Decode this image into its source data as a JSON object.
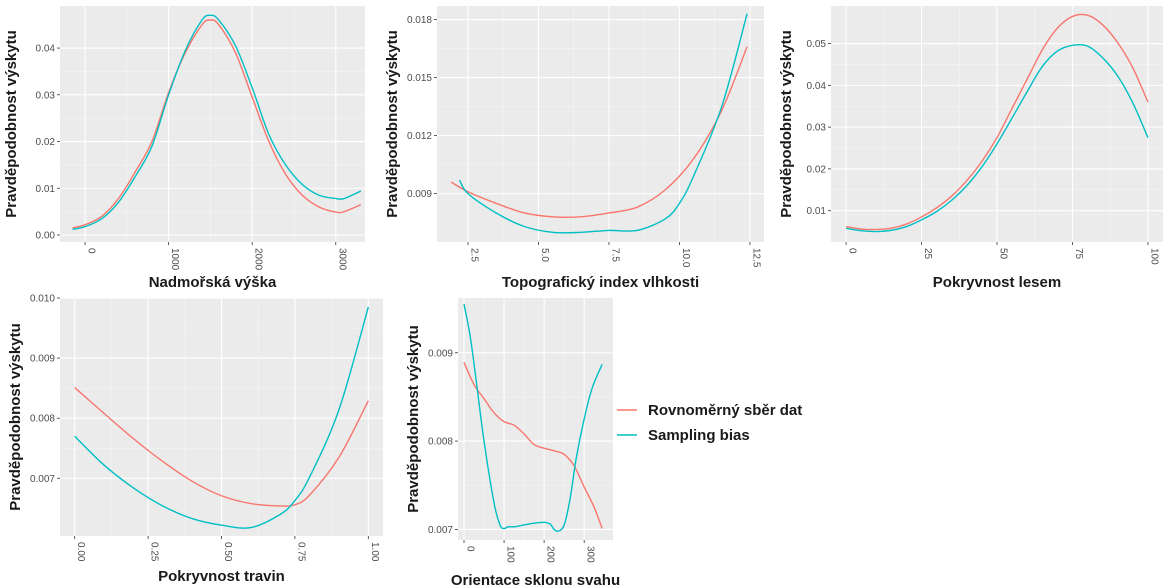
{
  "colors": {
    "uniform": "#F8766D",
    "bias": "#00BFC4",
    "panel_bg": "#EBEBEB",
    "grid_major": "#FFFFFF"
  },
  "legend": {
    "position": "right",
    "entries": [
      {
        "label": "Rovnoměrný sběr dat",
        "color": "#F8766D"
      },
      {
        "label": "Sampling bias",
        "color": "#00BFC4"
      }
    ]
  },
  "chart_data": [
    {
      "type": "line",
      "xlabel": "Nadmořská výška",
      "ylabel": "Pravděpodobnost výskytu",
      "xlim": [
        -300,
        3350
      ],
      "ylim": [
        -0.0015,
        0.049
      ],
      "xticks": [
        {
          "v": 0,
          "label": "0"
        },
        {
          "v": 1000,
          "label": "1000"
        },
        {
          "v": 2000,
          "label": "2000"
        },
        {
          "v": 3000,
          "label": "3000"
        }
      ],
      "yticks": [
        {
          "v": 0,
          "label": "0.00"
        },
        {
          "v": 0.01,
          "label": "0.01"
        },
        {
          "v": 0.02,
          "label": "0.02"
        },
        {
          "v": 0.03,
          "label": "0.03"
        },
        {
          "v": 0.04,
          "label": "0.04"
        }
      ],
      "grid": true,
      "series": [
        {
          "name": "Rovnoměrný sběr dat",
          "color": "#F8766D",
          "x": [
            -150,
            0,
            200,
            400,
            600,
            800,
            1000,
            1200,
            1400,
            1500,
            1600,
            1800,
            2000,
            2200,
            2400,
            2600,
            2800,
            3000,
            3100,
            3300
          ],
          "y": [
            0.0015,
            0.0022,
            0.004,
            0.0078,
            0.0135,
            0.02,
            0.0305,
            0.039,
            0.045,
            0.046,
            0.045,
            0.039,
            0.0295,
            0.02,
            0.013,
            0.0085,
            0.006,
            0.0049,
            0.005,
            0.0065
          ]
        },
        {
          "name": "Sampling bias",
          "color": "#00BFC4",
          "x": [
            -150,
            0,
            200,
            400,
            600,
            800,
            1000,
            1200,
            1400,
            1500,
            1600,
            1800,
            2000,
            2200,
            2400,
            2600,
            2800,
            3000,
            3100,
            3300
          ],
          "y": [
            0.0012,
            0.0018,
            0.0035,
            0.007,
            0.0125,
            0.019,
            0.03,
            0.0395,
            0.046,
            0.047,
            0.046,
            0.0405,
            0.0315,
            0.0215,
            0.015,
            0.0108,
            0.0085,
            0.0078,
            0.0078,
            0.0094
          ]
        }
      ]
    },
    {
      "type": "line",
      "xlabel": "Topografický index vlhkosti",
      "ylabel": "Pravděpodobnost výskytu",
      "xlim": [
        1.4,
        13.0
      ],
      "ylim": [
        0.0065,
        0.0187
      ],
      "xticks": [
        {
          "v": 2.5,
          "label": "2.5"
        },
        {
          "v": 5.0,
          "label": "5.0"
        },
        {
          "v": 7.5,
          "label": "7.5"
        },
        {
          "v": 10.0,
          "label": "10.0"
        },
        {
          "v": 12.5,
          "label": "12.5"
        }
      ],
      "yticks": [
        {
          "v": 0.009,
          "label": "0.009"
        },
        {
          "v": 0.012,
          "label": "0.012"
        },
        {
          "v": 0.015,
          "label": "0.015"
        },
        {
          "v": 0.018,
          "label": "0.018"
        }
      ],
      "grid": true,
      "series": [
        {
          "name": "Rovnoměrný sběr dat",
          "color": "#F8766D",
          "x": [
            1.9,
            2.5,
            3.5,
            4.5,
            5.5,
            6.5,
            7.5,
            8.5,
            9.5,
            10.5,
            11.5,
            12.4
          ],
          "y": [
            0.0096,
            0.0091,
            0.0085,
            0.008,
            0.0078,
            0.0078,
            0.008,
            0.0083,
            0.0092,
            0.0108,
            0.0133,
            0.0166
          ]
        },
        {
          "name": "Sampling bias",
          "color": "#00BFC4",
          "x": [
            2.2,
            2.5,
            3.5,
            4.5,
            5.5,
            6.5,
            7.5,
            8.5,
            9.5,
            10.0,
            10.5,
            11.5,
            12.4
          ],
          "y": [
            0.0097,
            0.009,
            0.008,
            0.0073,
            0.007,
            0.007,
            0.0071,
            0.0071,
            0.0077,
            0.0085,
            0.0099,
            0.0135,
            0.0183
          ]
        }
      ]
    },
    {
      "type": "line",
      "xlabel": "Pokryvnost lesem",
      "ylabel": "Pravděpodobnost výskytu",
      "xlim": [
        -5,
        105
      ],
      "ylim": [
        0.0025,
        0.059
      ],
      "xticks": [
        {
          "v": 0,
          "label": "0"
        },
        {
          "v": 25,
          "label": "25"
        },
        {
          "v": 50,
          "label": "50"
        },
        {
          "v": 75,
          "label": "75"
        },
        {
          "v": 100,
          "label": "100"
        }
      ],
      "yticks": [
        {
          "v": 0.01,
          "label": "0.01"
        },
        {
          "v": 0.02,
          "label": "0.02"
        },
        {
          "v": 0.03,
          "label": "0.03"
        },
        {
          "v": 0.04,
          "label": "0.04"
        },
        {
          "v": 0.05,
          "label": "0.05"
        }
      ],
      "grid": true,
      "series": [
        {
          "name": "Rovnoměrný sběr dat",
          "color": "#F8766D",
          "x": [
            0,
            5,
            10,
            15,
            20,
            25,
            30,
            35,
            40,
            45,
            50,
            55,
            60,
            65,
            70,
            75,
            80,
            85,
            90,
            95,
            100
          ],
          "y": [
            0.0062,
            0.0056,
            0.0055,
            0.0058,
            0.0068,
            0.0085,
            0.0107,
            0.0135,
            0.0172,
            0.0218,
            0.0275,
            0.0345,
            0.0415,
            0.0485,
            0.0537,
            0.0565,
            0.0568,
            0.0545,
            0.0502,
            0.0442,
            0.036
          ]
        },
        {
          "name": "Sampling bias",
          "color": "#00BFC4",
          "x": [
            0,
            5,
            10,
            15,
            20,
            25,
            30,
            35,
            40,
            45,
            50,
            55,
            60,
            65,
            70,
            75,
            80,
            85,
            90,
            95,
            100
          ],
          "y": [
            0.0058,
            0.0052,
            0.005,
            0.0053,
            0.0062,
            0.0078,
            0.0098,
            0.0125,
            0.016,
            0.0205,
            0.026,
            0.0322,
            0.0385,
            0.0445,
            0.0482,
            0.0496,
            0.0494,
            0.0466,
            0.0422,
            0.0358,
            0.0275
          ]
        }
      ]
    },
    {
      "type": "line",
      "xlabel": "Pokryvnost travin",
      "ylabel": "Pravděpodobnost výskytu",
      "xlim": [
        -0.05,
        1.05
      ],
      "ylim": [
        0.00604,
        0.01
      ],
      "xticks": [
        {
          "v": 0,
          "label": "0.00"
        },
        {
          "v": 0.25,
          "label": "0.25"
        },
        {
          "v": 0.5,
          "label": "0.50"
        },
        {
          "v": 0.75,
          "label": "0.75"
        },
        {
          "v": 1.0,
          "label": "1.00"
        }
      ],
      "yticks": [
        {
          "v": 0.007,
          "label": "0.007"
        },
        {
          "v": 0.008,
          "label": "0.008"
        },
        {
          "v": 0.009,
          "label": "0.009"
        },
        {
          "v": 0.01,
          "label": "0.010"
        }
      ],
      "grid": true,
      "series": [
        {
          "name": "Rovnoměrný sběr dat",
          "color": "#F8766D",
          "x": [
            0,
            0.1,
            0.2,
            0.3,
            0.4,
            0.5,
            0.6,
            0.7,
            0.75,
            0.8,
            0.9,
            1.0
          ],
          "y": [
            0.00851,
            0.00808,
            0.00766,
            0.00728,
            0.00695,
            0.00671,
            0.00658,
            0.00654,
            0.00656,
            0.00672,
            0.00735,
            0.00829
          ]
        },
        {
          "name": "Sampling bias",
          "color": "#00BFC4",
          "x": [
            0,
            0.1,
            0.2,
            0.3,
            0.4,
            0.5,
            0.6,
            0.7,
            0.75,
            0.8,
            0.9,
            1.0
          ],
          "y": [
            0.0077,
            0.00722,
            0.00684,
            0.00654,
            0.00633,
            0.00622,
            0.00618,
            0.0064,
            0.00663,
            0.00702,
            0.00814,
            0.00985
          ]
        }
      ]
    },
    {
      "type": "line",
      "xlabel": "Orientace sklonu svahu",
      "ylabel": "Pravděpodobnost výskytu",
      "xlim": [
        -15,
        372
      ],
      "ylim": [
        0.00688,
        0.00962
      ],
      "xticks": [
        {
          "v": 0,
          "label": "0"
        },
        {
          "v": 100,
          "label": "100"
        },
        {
          "v": 200,
          "label": "200"
        },
        {
          "v": 300,
          "label": "300"
        }
      ],
      "yticks": [
        {
          "v": 0.007,
          "label": "0.007"
        },
        {
          "v": 0.008,
          "label": "0.008"
        },
        {
          "v": 0.009,
          "label": "0.009"
        }
      ],
      "grid": true,
      "series": [
        {
          "name": "Rovnoměrný sběr dat",
          "color": "#F8766D",
          "x": [
            0,
            25,
            50,
            75,
            100,
            125,
            150,
            175,
            200,
            225,
            250,
            275,
            300,
            325,
            345
          ],
          "y": [
            0.00889,
            0.00864,
            0.00848,
            0.00832,
            0.00822,
            0.00818,
            0.00808,
            0.00796,
            0.00792,
            0.00789,
            0.00785,
            0.00772,
            0.00748,
            0.00725,
            0.00701
          ]
        },
        {
          "name": "Sampling bias",
          "color": "#00BFC4",
          "x": [
            0,
            15,
            30,
            50,
            75,
            90,
            100,
            110,
            125,
            150,
            175,
            200,
            215,
            225,
            235,
            250,
            265,
            280,
            300,
            320,
            345
          ],
          "y": [
            0.00955,
            0.0092,
            0.0087,
            0.008,
            0.0073,
            0.00705,
            0.00701,
            0.00703,
            0.00703,
            0.00705,
            0.00707,
            0.00708,
            0.00706,
            0.007,
            0.00698,
            0.00705,
            0.00735,
            0.0078,
            0.00825,
            0.0086,
            0.00887
          ]
        }
      ]
    }
  ]
}
